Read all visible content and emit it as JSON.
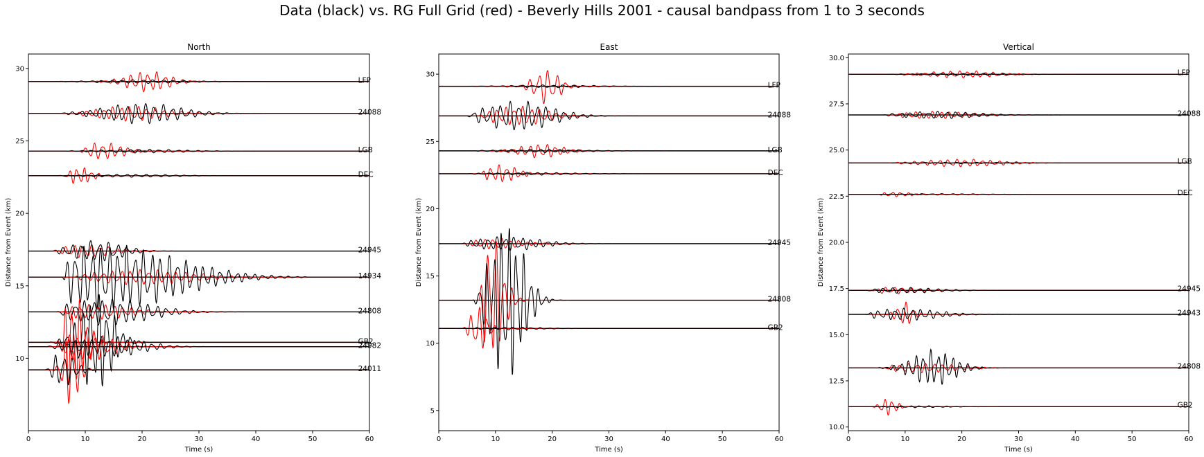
{
  "suptitle": "Data (black) vs. RG Full Grid (red) - Beverly Hills 2001 - causal bandpass from 1 to 3 seconds",
  "colors": {
    "data": "#000000",
    "synthetic": "#ff0000",
    "baseline": "#000000"
  },
  "chart_data": [
    {
      "type": "line",
      "title": "North",
      "xlabel": "Time (s)",
      "ylabel": "Distance from Event (km)",
      "xlim": [
        0,
        60
      ],
      "ylim": [
        5.0,
        31.0
      ],
      "xticks": [
        0,
        10,
        20,
        30,
        40,
        50,
        60
      ],
      "yticks": [
        10,
        15,
        20,
        25,
        30
      ],
      "ytick_labels": [
        "10",
        "15",
        "20",
        "25",
        "30"
      ],
      "grid": false,
      "stations": [
        {
          "name": "LFP",
          "dist": 29.1,
          "label_y": 29.2,
          "data": {
            "t0": 4,
            "t1": 42,
            "amp": 0.1,
            "period": 1.8,
            "peak": 20,
            "spread": 10
          },
          "synth": {
            "t0": 8,
            "t1": 40,
            "amp": 0.55,
            "period": 1.5,
            "peak": 21,
            "spread": 5
          }
        },
        {
          "name": "24088",
          "dist": 26.9,
          "label_y": 27.0,
          "data": {
            "t0": 5,
            "t1": 42,
            "amp": 0.55,
            "period": 1.6,
            "peak": 20,
            "spread": 9
          },
          "synth": {
            "t0": 8,
            "t1": 40,
            "amp": 0.4,
            "period": 1.5,
            "peak": 18,
            "spread": 8
          }
        },
        {
          "name": "LGB",
          "dist": 24.3,
          "label_y": 24.4,
          "data": {
            "t0": 6,
            "t1": 41,
            "amp": 0.1,
            "period": 1.7,
            "peak": 20,
            "spread": 10
          },
          "synth": {
            "t0": 9,
            "t1": 38,
            "amp": 0.45,
            "period": 1.5,
            "peak": 13,
            "spread": 5
          }
        },
        {
          "name": "DEC",
          "dist": 22.6,
          "label_y": 22.7,
          "data": {
            "t0": 4,
            "t1": 41,
            "amp": 0.08,
            "period": 1.7,
            "peak": 18,
            "spread": 10
          },
          "synth": {
            "t0": 6,
            "t1": 30,
            "amp": 0.45,
            "period": 1.3,
            "peak": 9,
            "spread": 3
          }
        },
        {
          "name": "24945",
          "dist": 17.4,
          "label_y": 17.5,
          "data": {
            "t0": 4,
            "t1": 41,
            "amp": 0.55,
            "period": 1.6,
            "peak": 12,
            "spread": 6
          },
          "synth": {
            "t0": 5,
            "t1": 40,
            "amp": 0.35,
            "period": 1.5,
            "peak": 10,
            "spread": 6
          }
        },
        {
          "name": "14934",
          "dist": 15.6,
          "label_y": 15.7,
          "data": {
            "t0": 6,
            "t1": 49,
            "amp": 1.7,
            "period": 1.5,
            "peak": 14,
            "spread": 17
          },
          "synth": {
            "t0": 8,
            "t1": 60,
            "amp": 0.4,
            "period": 1.6,
            "peak": 20,
            "spread": 12
          }
        },
        {
          "name": "24808",
          "dist": 13.2,
          "label_y": 13.3,
          "data": {
            "t0": 5,
            "t1": 42,
            "amp": 0.7,
            "period": 1.6,
            "peak": 14,
            "spread": 10
          },
          "synth": {
            "t0": 6,
            "t1": 40,
            "amp": 0.4,
            "period": 1.5,
            "peak": 12,
            "spread": 8
          }
        },
        {
          "name": "GB2",
          "dist": 11.1,
          "label_y": 11.2,
          "data": {
            "t0": 3,
            "t1": 28,
            "amp": 2.6,
            "period": 1.4,
            "peak": 12,
            "spread": 4
          },
          "synth": {
            "t0": 5,
            "t1": 20,
            "amp": 2.5,
            "period": 1.3,
            "peak": 8,
            "spread": 3
          }
        },
        {
          "name": "24982",
          "dist": 10.8,
          "label_y": 10.9,
          "data": {
            "t0": 3,
            "t1": 43,
            "amp": 0.55,
            "period": 1.5,
            "peak": 14,
            "spread": 8
          },
          "synth": {
            "t0": 5,
            "t1": 40,
            "amp": 0.8,
            "period": 1.5,
            "peak": 10,
            "spread": 6
          }
        },
        {
          "name": "24011",
          "dist": 9.2,
          "label_y": 9.3,
          "data": {
            "t0": 3,
            "t1": 41,
            "amp": 0.9,
            "period": 1.5,
            "peak": 6,
            "spread": 3
          },
          "synth": {
            "t0": 4,
            "t1": 40,
            "amp": 1.9,
            "period": 1.4,
            "peak": 7.5,
            "spread": 2
          }
        }
      ]
    },
    {
      "type": "line",
      "title": "East",
      "xlabel": "Time (s)",
      "ylabel": "Distance from Event (km)",
      "xlim": [
        0,
        60
      ],
      "ylim": [
        3.5,
        31.5
      ],
      "xticks": [
        0,
        10,
        20,
        30,
        40,
        50,
        60
      ],
      "yticks": [
        5,
        10,
        15,
        20,
        25,
        30
      ],
      "ytick_labels": [
        "5",
        "10",
        "15",
        "20",
        "25",
        "30"
      ],
      "grid": false,
      "stations": [
        {
          "name": "LFP",
          "dist": 29.1,
          "label_y": 29.2,
          "data": {
            "t0": 5,
            "t1": 41,
            "amp": 0.08,
            "period": 1.8,
            "peak": 20,
            "spread": 10
          },
          "synth": {
            "t0": 8,
            "t1": 40,
            "amp": 1.0,
            "period": 1.6,
            "peak": 19,
            "spread": 3
          }
        },
        {
          "name": "24088",
          "dist": 26.9,
          "label_y": 27.0,
          "data": {
            "t0": 5,
            "t1": 41,
            "amp": 0.85,
            "period": 1.6,
            "peak": 14,
            "spread": 8
          },
          "synth": {
            "t0": 7,
            "t1": 40,
            "amp": 0.55,
            "period": 1.5,
            "peak": 14,
            "spread": 7
          }
        },
        {
          "name": "LGB",
          "dist": 24.3,
          "label_y": 24.4,
          "data": {
            "t0": 6,
            "t1": 41,
            "amp": 0.1,
            "period": 1.7,
            "peak": 18,
            "spread": 10
          },
          "synth": {
            "t0": 8,
            "t1": 38,
            "amp": 0.4,
            "period": 1.5,
            "peak": 18,
            "spread": 5
          }
        },
        {
          "name": "DEC",
          "dist": 22.6,
          "label_y": 22.7,
          "data": {
            "t0": 5,
            "t1": 41,
            "amp": 0.08,
            "period": 1.7,
            "peak": 16,
            "spread": 10
          },
          "synth": {
            "t0": 7,
            "t1": 34,
            "amp": 0.5,
            "period": 1.4,
            "peak": 11,
            "spread": 4
          }
        },
        {
          "name": "24945",
          "dist": 17.4,
          "label_y": 17.5,
          "data": {
            "t0": 4,
            "t1": 41,
            "amp": 0.4,
            "period": 1.5,
            "peak": 12,
            "spread": 8
          },
          "synth": {
            "t0": 5,
            "t1": 40,
            "amp": 0.3,
            "period": 1.5,
            "peak": 10,
            "spread": 6
          }
        },
        {
          "name": "24808",
          "dist": 13.2,
          "label_y": 13.3,
          "data": {
            "t0": 6,
            "t1": 42,
            "amp": 4.5,
            "period": 1.3,
            "peak": 12,
            "spread": 4
          },
          "synth": {
            "t0": 7,
            "t1": 40,
            "amp": 3.8,
            "period": 1.4,
            "peak": 9,
            "spread": 3
          }
        },
        {
          "name": "GB2",
          "dist": 11.1,
          "label_y": 11.2,
          "data": {
            "t0": 5,
            "t1": 41,
            "amp": 0.08,
            "period": 1.6,
            "peak": 12,
            "spread": 8
          },
          "synth": {
            "t0": 4,
            "t1": 30,
            "amp": 1.3,
            "period": 1.4,
            "peak": 7,
            "spread": 2
          }
        }
      ]
    },
    {
      "type": "line",
      "title": "Vertical",
      "xlabel": "Time (s)",
      "ylabel": "Distance from Event (km)",
      "xlim": [
        0,
        60
      ],
      "ylim": [
        9.8,
        30.2
      ],
      "xticks": [
        0,
        10,
        20,
        30,
        40,
        50,
        60
      ],
      "yticks": [
        10.0,
        12.5,
        15.0,
        17.5,
        20.0,
        22.5,
        25.0,
        27.5,
        30.0
      ],
      "ytick_labels": [
        "10.0",
        "12.5",
        "15.0",
        "17.5",
        "20.0",
        "22.5",
        "25.0",
        "27.5",
        "30.0"
      ],
      "grid": false,
      "stations": [
        {
          "name": "LFP",
          "dist": 29.1,
          "label_y": 29.2,
          "data": {
            "t0": 6,
            "t1": 41,
            "amp": 0.05,
            "period": 1.8,
            "peak": 20,
            "spread": 10
          },
          "synth": {
            "t0": 8,
            "t1": 40,
            "amp": 0.15,
            "period": 1.5,
            "peak": 20,
            "spread": 8
          }
        },
        {
          "name": "24088",
          "dist": 26.9,
          "label_y": 27.0,
          "data": {
            "t0": 6,
            "t1": 41,
            "amp": 0.15,
            "period": 1.6,
            "peak": 16,
            "spread": 9
          },
          "synth": {
            "t0": 8,
            "t1": 40,
            "amp": 0.15,
            "period": 1.5,
            "peak": 15,
            "spread": 9
          }
        },
        {
          "name": "LGB",
          "dist": 24.3,
          "label_y": 24.4,
          "data": {
            "t0": 7,
            "t1": 41,
            "amp": 0.03,
            "period": 1.8,
            "peak": 20,
            "spread": 10
          },
          "synth": {
            "t0": 7,
            "t1": 38,
            "amp": 0.16,
            "period": 1.5,
            "peak": 20,
            "spread": 9
          }
        },
        {
          "name": "DEC",
          "dist": 22.6,
          "label_y": 22.7,
          "data": {
            "t0": 5,
            "t1": 41,
            "amp": 0.03,
            "period": 1.8,
            "peak": 16,
            "spread": 10
          },
          "synth": {
            "t0": 5,
            "t1": 30,
            "amp": 0.1,
            "period": 1.4,
            "peak": 8,
            "spread": 4
          }
        },
        {
          "name": "24945",
          "dist": 17.4,
          "label_y": 17.5,
          "data": {
            "t0": 3,
            "t1": 41,
            "amp": 0.12,
            "period": 1.6,
            "peak": 10,
            "spread": 8
          },
          "synth": {
            "t0": 4,
            "t1": 40,
            "amp": 0.14,
            "period": 1.5,
            "peak": 8,
            "spread": 6
          }
        },
        {
          "name": "24943",
          "dist": 16.1,
          "label_y": 16.2,
          "data": {
            "t0": 3,
            "t1": 41,
            "amp": 0.25,
            "period": 1.5,
            "peak": 10,
            "spread": 8
          },
          "synth": {
            "t0": 5,
            "t1": 60,
            "amp": 0.5,
            "period": 1.4,
            "peak": 10,
            "spread": 2
          }
        },
        {
          "name": "24808",
          "dist": 13.2,
          "label_y": 13.3,
          "data": {
            "t0": 4,
            "t1": 42,
            "amp": 0.75,
            "period": 1.3,
            "peak": 15,
            "spread": 5
          },
          "synth": {
            "t0": 6,
            "t1": 40,
            "amp": 0.2,
            "period": 1.5,
            "peak": 13,
            "spread": 8
          }
        },
        {
          "name": "GB2",
          "dist": 11.1,
          "label_y": 11.2,
          "data": {
            "t0": 4,
            "t1": 41,
            "amp": 0.04,
            "period": 1.6,
            "peak": 12,
            "spread": 8
          },
          "synth": {
            "t0": 4,
            "t1": 20,
            "amp": 0.35,
            "period": 1.3,
            "peak": 7,
            "spread": 2
          }
        }
      ]
    }
  ]
}
